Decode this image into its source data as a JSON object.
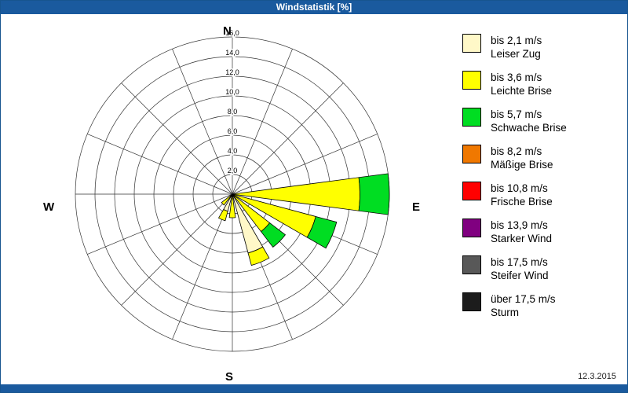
{
  "window": {
    "title": "Windstatistik [%]",
    "date": "12.3.2015"
  },
  "compass": {
    "north": "N",
    "east": "E",
    "south": "S",
    "west": "W"
  },
  "legend": [
    {
      "speed": "bis 2,1 m/s",
      "name": "Leiser Zug",
      "color": "#FFF8C8"
    },
    {
      "speed": "bis 3,6 m/s",
      "name": "Leichte Brise",
      "color": "#FFFF00"
    },
    {
      "speed": "bis 5,7 m/s",
      "name": "Schwache Brise",
      "color": "#00DD22"
    },
    {
      "speed": "bis 8,2 m/s",
      "name": "Mäßige Brise",
      "color": "#F07800"
    },
    {
      "speed": "bis 10,8 m/s",
      "name": "Frische Brise",
      "color": "#FF0000"
    },
    {
      "speed": "bis 13,9 m/s",
      "name": "Starker Wind",
      "color": "#800080"
    },
    {
      "speed": "bis 17,5 m/s",
      "name": "Steifer Wind",
      "color": "#585858"
    },
    {
      "speed": "über 17,5 m/s",
      "name": "Sturm",
      "color": "#1C1C1C"
    }
  ],
  "chart_data": {
    "type": "windrose",
    "title": "Windstatistik [%]",
    "units": "%",
    "max": 16,
    "radial_ticks": [
      2,
      4,
      6,
      8,
      10,
      12,
      14,
      16
    ],
    "radial_tick_labels": [
      "2,0",
      "4,0",
      "6,0",
      "8,0",
      "10,0",
      "12,0",
      "14,0",
      "16,0"
    ],
    "directions": [
      "N",
      "NNE",
      "NE",
      "ENE",
      "E",
      "ESE",
      "SE",
      "SSE",
      "S",
      "SSW",
      "SW",
      "WSW",
      "W",
      "WNW",
      "NW",
      "NNW"
    ],
    "series": [
      {
        "name": "bis 2,1 m/s Leiser Zug",
        "color": "#FFF8C8",
        "values": [
          0,
          0,
          0,
          0,
          0,
          0,
          0,
          6.2,
          0,
          1.8,
          0,
          0,
          0,
          0,
          0,
          0
        ]
      },
      {
        "name": "bis 3,6 m/s Leichte Brise",
        "color": "#FFFF00",
        "values": [
          0,
          0,
          0,
          0,
          13.0,
          8.8,
          4.8,
          1.3,
          2.4,
          1.0,
          1.4,
          0,
          0,
          0,
          0,
          0
        ]
      },
      {
        "name": "bis 5,7 m/s Schwache Brise",
        "color": "#00DD22",
        "values": [
          0,
          0,
          0,
          0,
          3.0,
          2.2,
          2.0,
          0,
          0,
          0,
          0,
          0,
          0,
          0,
          0,
          0
        ]
      }
    ],
    "legend_position": "right",
    "grid": true
  }
}
